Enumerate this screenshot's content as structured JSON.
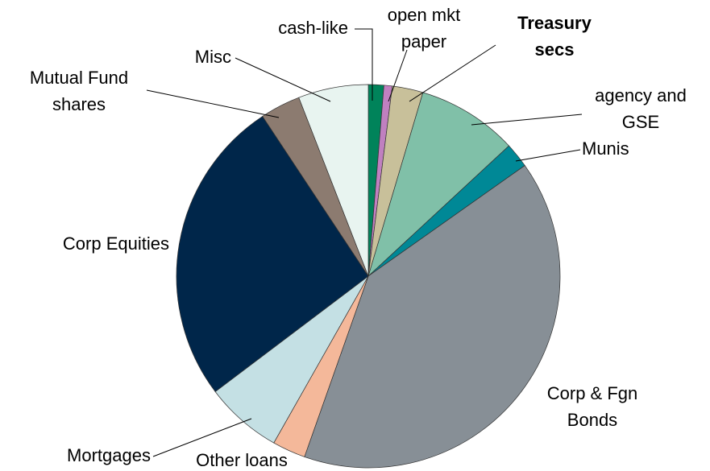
{
  "chart_data": {
    "type": "pie",
    "categories": [
      "cash-like",
      "open mkt\npaper",
      "Treasury\nsecs",
      "agency and\nGSE",
      "Munis",
      "Corp & Fgn\nBonds",
      "Other loans",
      "Mortgages",
      "Corp Equities",
      "Mutual Fund\nshares",
      "Misc"
    ],
    "values": [
      1.3,
      0.7,
      2.6,
      8.5,
      2.1,
      40.2,
      2.8,
      6.5,
      26.0,
      3.4,
      5.9
    ],
    "colors": [
      "#00835a",
      "#c080c0",
      "#c8c09a",
      "#80c0a8",
      "#008896",
      "#878f96",
      "#f4b89a",
      "#c4e0e4",
      "#00264a",
      "#8c7b70",
      "#e8f4f0"
    ],
    "label_bold": [
      false,
      false,
      true,
      false,
      false,
      false,
      false,
      false,
      false,
      false,
      false
    ]
  }
}
